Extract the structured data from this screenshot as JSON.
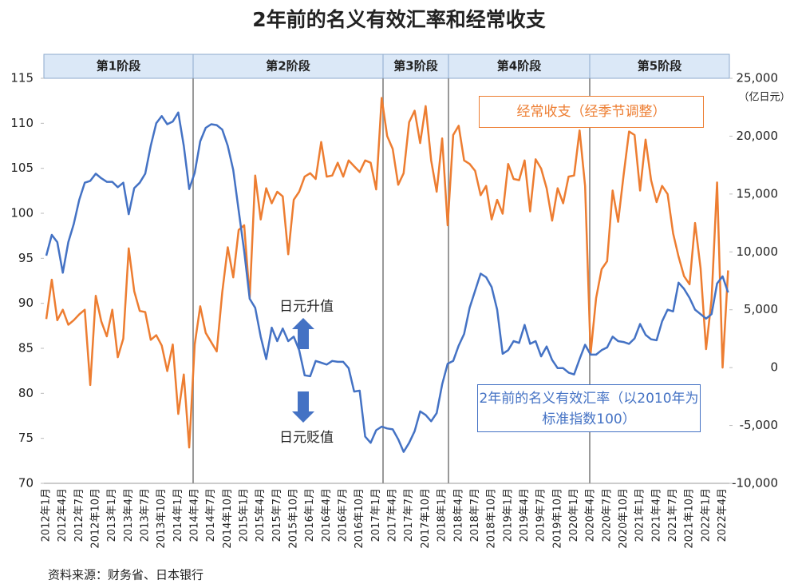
{
  "chart_data": {
    "type": "line",
    "title": "2年前的名义有效汇率和经常收支",
    "source": "资料来源：财务省、日本银行",
    "y2_unit": "（亿日元）",
    "phases": [
      "第1阶段",
      "第2阶段",
      "第3阶段",
      "第4阶段",
      "第5阶段"
    ],
    "annotations": [
      "日元升值",
      "日元贬值"
    ],
    "categories": [
      "2012年1月",
      null,
      null,
      "2012年4月",
      null,
      null,
      "2012年7月",
      null,
      null,
      "2012年10月",
      null,
      null,
      "2013年1月",
      null,
      null,
      "2013年4月",
      null,
      null,
      "2013年7月",
      null,
      null,
      "2013年10月",
      null,
      null,
      "2014年1月",
      null,
      null,
      "2014年4月",
      null,
      null,
      "2014年7月",
      null,
      null,
      "2014年10月",
      null,
      null,
      "2015年1月",
      null,
      null,
      "2015年4月",
      null,
      null,
      "2015年7月",
      null,
      null,
      "2015年10月",
      null,
      null,
      "2016年1月",
      null,
      null,
      "2016年4月",
      null,
      null,
      "2016年7月",
      null,
      null,
      "2016年10月",
      null,
      null,
      "2017年1月",
      null,
      null,
      "2017年4月",
      null,
      null,
      "2017年7月",
      null,
      null,
      "2017年10月",
      null,
      null,
      "2018年1月",
      null,
      null,
      "2018年4月",
      null,
      null,
      "2018年7月",
      null,
      null,
      "2018年10月",
      null,
      null,
      "2019年1月",
      null,
      null,
      "2019年4月",
      null,
      null,
      "2019年7月",
      null,
      null,
      "2019年10月",
      null,
      null,
      "2020年1月",
      null,
      null,
      "2020年4月",
      null,
      null,
      "2020年7月",
      null,
      null,
      "2020年10月",
      null,
      null,
      "2021年1月",
      null,
      null,
      "2021年4月",
      null,
      null,
      "2021年7月",
      null,
      null,
      "2021年10月",
      null,
      null,
      "2022年1月",
      null,
      null,
      "2022年4月",
      null
    ],
    "series": [
      {
        "name": "2年前的名义有效汇率（以2010年为标准指数100）",
        "color": "#4472c4",
        "axis": "y",
        "values": [
          95.3,
          97.6,
          96.8,
          93.4,
          96.8,
          98.8,
          101.5,
          103.4,
          103.6,
          104.4,
          103.9,
          103.5,
          103.5,
          102.9,
          103.4,
          99.9,
          102.8,
          103.4,
          104.4,
          107.5,
          110,
          110.8,
          109.9,
          110.2,
          111.2,
          107.5,
          102.7,
          104.5,
          108,
          109.5,
          109.9,
          109.8,
          109.3,
          107.5,
          104.8,
          100.3,
          95.8,
          90.5,
          89.5,
          86.3,
          83.8,
          87.3,
          85.8,
          87.2,
          85.8,
          86.3,
          84.8,
          82,
          81.9,
          83.6,
          83.4,
          83.2,
          83.6,
          83.5,
          83.5,
          82.8,
          80.2,
          80.3,
          75.2,
          74.5,
          75.9,
          76.3,
          76.1,
          76,
          74.9,
          73.5,
          74.5,
          75.8,
          78,
          77.6,
          76.9,
          77.8,
          81,
          83.3,
          83.6,
          85.3,
          86.6,
          89.5,
          91.4,
          93.3,
          92.9,
          91.8,
          89.3,
          84.4,
          84.8,
          85.8,
          85.6,
          87.6,
          85.5,
          85.8,
          84.1,
          85.2,
          83.7,
          82.8,
          82.8,
          82.3,
          82.1,
          83.8,
          85.4,
          84.3,
          84.3,
          84.8,
          85.1,
          86.3,
          85.8,
          85.7,
          85.5,
          86.1,
          87.7,
          86.5,
          86,
          85.9,
          88,
          89.3,
          89.1,
          92.3,
          91.6,
          90.6,
          89.3,
          88.8,
          88.3,
          88.8,
          92.2,
          93,
          91.2
        ]
      },
      {
        "name": "经常收支（经季节调整）",
        "color": "#ed7d31",
        "axis": "y2",
        "values": [
          4200,
          7600,
          4100,
          5000,
          3700,
          4100,
          4600,
          5000,
          -1500,
          6200,
          4000,
          2700,
          5000,
          900,
          2500,
          10300,
          6600,
          4900,
          4800,
          2400,
          2800,
          1900,
          -300,
          2000,
          -4000,
          -600,
          -6900,
          2000,
          5300,
          3000,
          2200,
          1400,
          6500,
          10400,
          7800,
          11900,
          12300,
          6000,
          16600,
          12800,
          15500,
          14200,
          15200,
          14800,
          9800,
          14500,
          15200,
          16500,
          16800,
          16300,
          19500,
          16500,
          16600,
          17700,
          16500,
          17900,
          17400,
          16900,
          17900,
          17700,
          15400,
          23300,
          20000,
          18900,
          15800,
          16800,
          21200,
          22200,
          19400,
          22600,
          17900,
          15200,
          19800,
          12300,
          20100,
          20900,
          17900,
          17600,
          17000,
          14900,
          15700,
          12800,
          14500,
          13300,
          17600,
          16300,
          16200,
          17900,
          13500,
          18000,
          17200,
          15500,
          12700,
          15500,
          14200,
          16500,
          16600,
          20500,
          15700,
          1200,
          6000,
          8500,
          9200,
          15300,
          12600,
          16600,
          20400,
          20100,
          15300,
          19700,
          16200,
          14300,
          15700,
          15000,
          11600,
          9600,
          7900,
          7200,
          12500,
          8600,
          1600,
          5900,
          16000,
          0,
          8400
        ]
      }
    ],
    "ylim": [
      70,
      115
    ],
    "yticks": [
      70,
      75,
      80,
      85,
      90,
      95,
      100,
      105,
      110,
      115
    ],
    "y2lim": [
      -10000,
      25000
    ],
    "y2ticks": [
      {
        "value": -10000,
        "label": "-10,000"
      },
      {
        "value": -5000,
        "label": "-5,000"
      },
      0,
      {
        "value": 5000,
        "label": "5,000"
      },
      {
        "value": 10000,
        "label": "10,000"
      },
      {
        "value": 15000,
        "label": "15,000"
      },
      {
        "value": 20000,
        "label": "20,000"
      },
      {
        "value": 25000,
        "label": "25,000"
      }
    ],
    "grid": false
  }
}
